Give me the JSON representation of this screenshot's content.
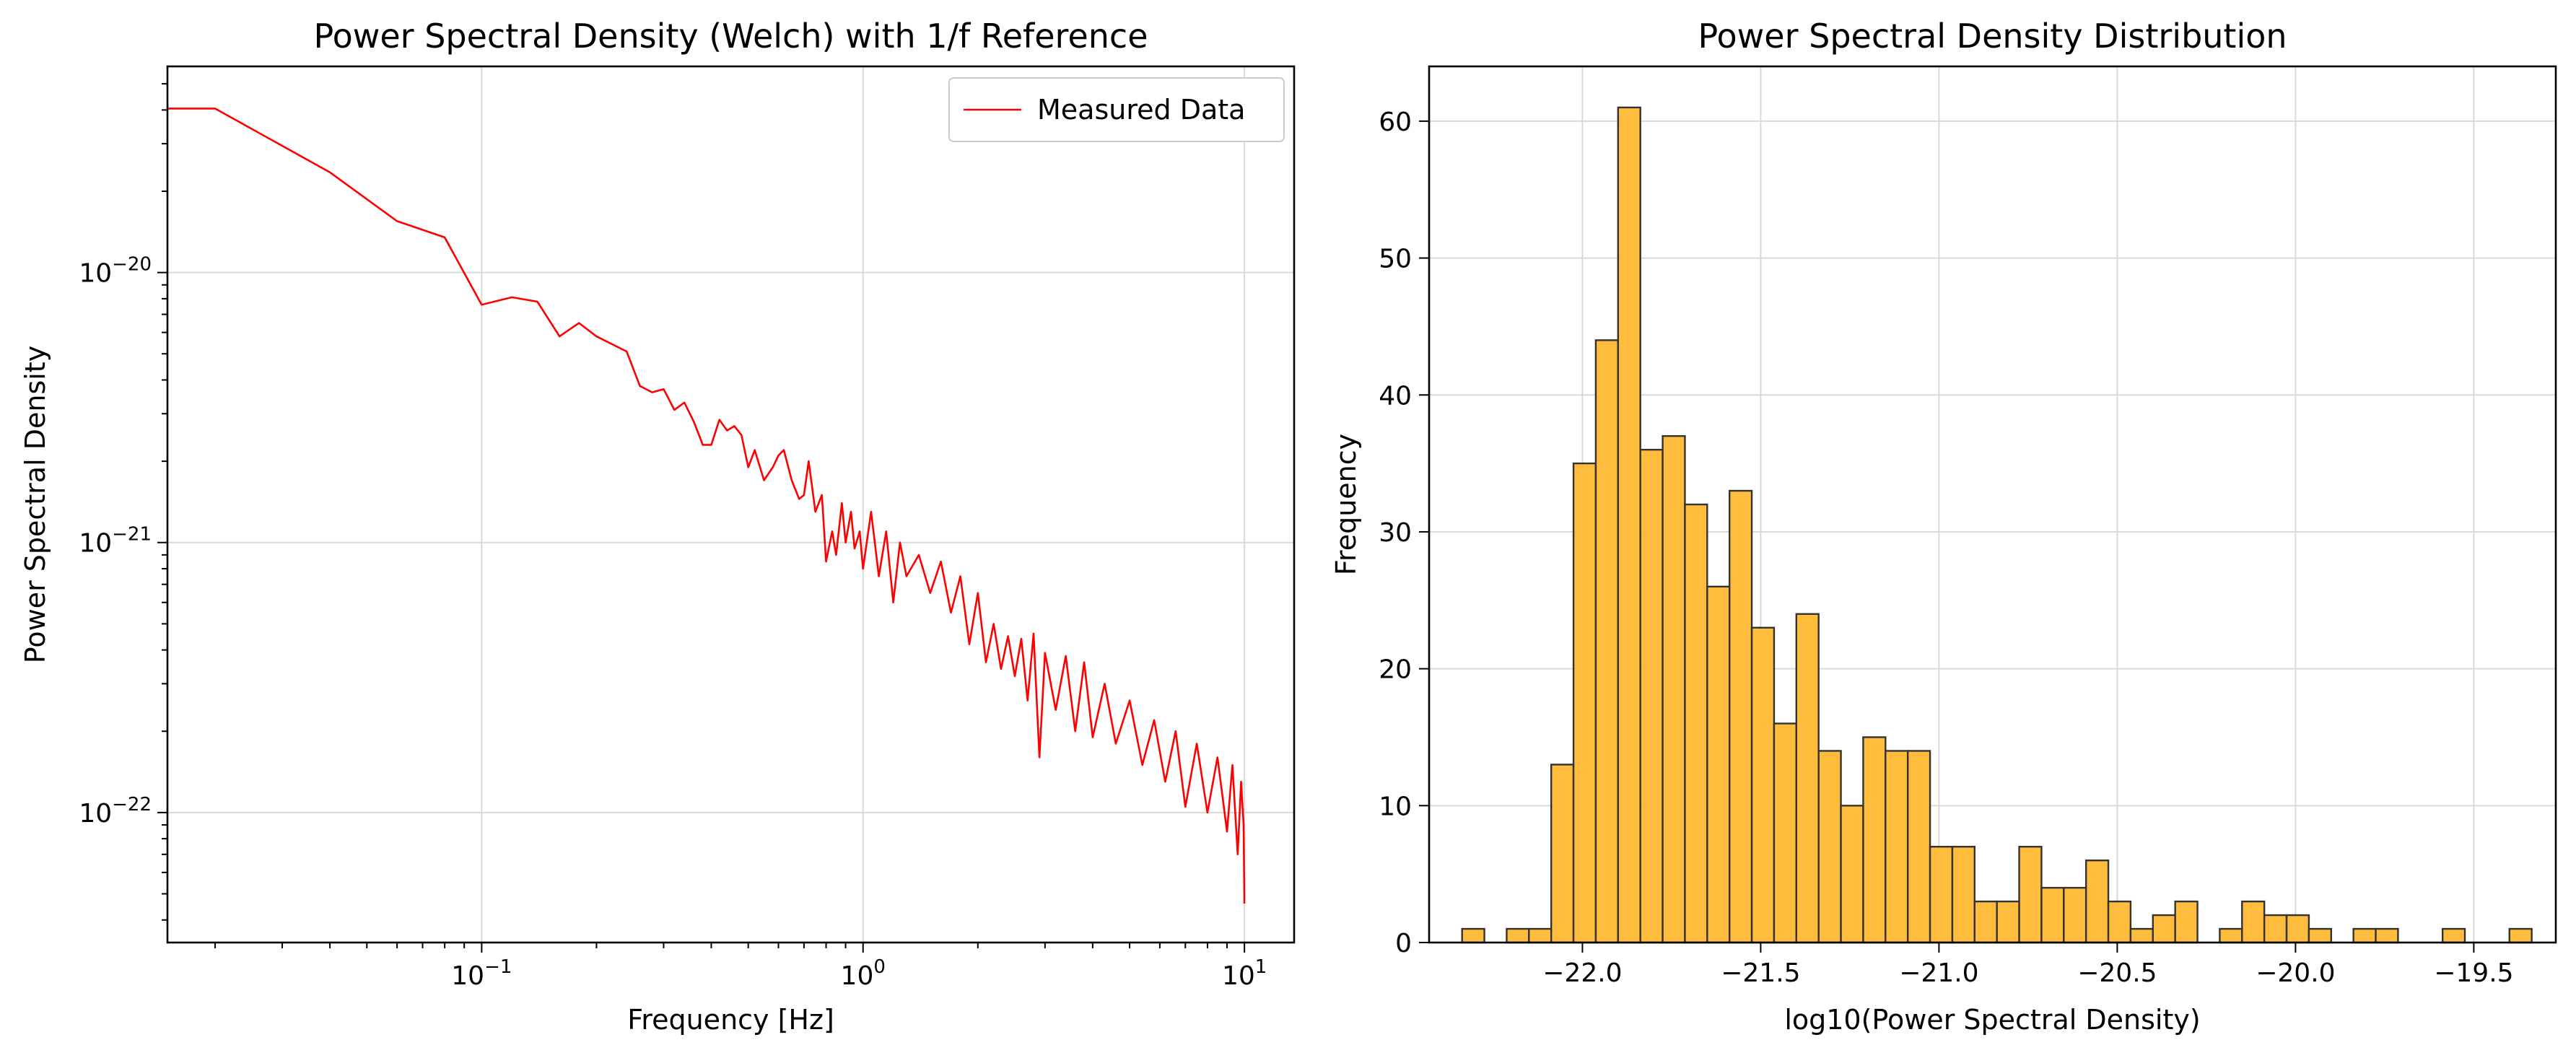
{
  "chart_data": [
    {
      "type": "line",
      "title": "Power Spectral Density (Welch) with 1/f Reference",
      "xlabel": "Frequency [Hz]",
      "ylabel": "Power Spectral Density",
      "xscale": "log",
      "yscale": "log",
      "xlim": [
        0.015,
        13.5
      ],
      "ylim": [
        3.3e-23,
        5.8e-20
      ],
      "xticks": [
        {
          "value": 0.1,
          "base": "10",
          "exp": "−1"
        },
        {
          "value": 1,
          "base": "10",
          "exp": "0"
        },
        {
          "value": 10,
          "base": "10",
          "exp": "1"
        }
      ],
      "yticks": [
        {
          "value": 1e-22,
          "base": "10",
          "exp": "−22"
        },
        {
          "value": 1e-21,
          "base": "10",
          "exp": "−21"
        },
        {
          "value": 1e-20,
          "base": "10",
          "exp": "−20"
        }
      ],
      "grid": true,
      "legend": {
        "position": "top-right",
        "entries": [
          "Measured Data"
        ]
      },
      "series": [
        {
          "name": "Measured Data",
          "color": "#ff0000",
          "x": [
            0.015,
            0.02,
            0.04,
            0.06,
            0.08,
            0.1,
            0.12,
            0.14,
            0.16,
            0.18,
            0.2,
            0.24,
            0.26,
            0.28,
            0.3,
            0.32,
            0.34,
            0.36,
            0.38,
            0.4,
            0.42,
            0.44,
            0.46,
            0.48,
            0.5,
            0.52,
            0.55,
            0.58,
            0.6,
            0.62,
            0.65,
            0.68,
            0.7,
            0.72,
            0.75,
            0.78,
            0.8,
            0.83,
            0.85,
            0.88,
            0.9,
            0.93,
            0.95,
            0.98,
            1.0,
            1.05,
            1.1,
            1.15,
            1.2,
            1.25,
            1.3,
            1.4,
            1.5,
            1.6,
            1.7,
            1.8,
            1.9,
            2.0,
            2.1,
            2.2,
            2.3,
            2.4,
            2.5,
            2.6,
            2.7,
            2.8,
            2.9,
            3.0,
            3.2,
            3.4,
            3.6,
            3.8,
            4.0,
            4.3,
            4.6,
            5.0,
            5.4,
            5.8,
            6.2,
            6.6,
            7.0,
            7.5,
            8.0,
            8.5,
            9.0,
            9.3,
            9.6,
            9.8,
            9.95,
            10.0
          ],
          "y": [
            4.05e-20,
            4.05e-20,
            2.35e-20,
            1.55e-20,
            1.35e-20,
            7.6e-21,
            8.1e-21,
            7.8e-21,
            5.8e-21,
            6.5e-21,
            5.8e-21,
            5.1e-21,
            3.8e-21,
            3.6e-21,
            3.7e-21,
            3.1e-21,
            3.3e-21,
            2.8e-21,
            2.3e-21,
            2.3e-21,
            2.85e-21,
            2.6e-21,
            2.7e-21,
            2.5e-21,
            1.9e-21,
            2.2e-21,
            1.7e-21,
            1.9e-21,
            2.1e-21,
            2.2e-21,
            1.7e-21,
            1.45e-21,
            1.5e-21,
            2e-21,
            1.3e-21,
            1.5e-21,
            8.5e-22,
            1.1e-21,
            9e-22,
            1.4e-21,
            1e-21,
            1.3e-21,
            9.5e-22,
            1.1e-21,
            8e-22,
            1.3e-21,
            7.5e-22,
            1.1e-21,
            6e-22,
            1e-21,
            7.5e-22,
            9e-22,
            6.5e-22,
            8.5e-22,
            5.5e-22,
            7.5e-22,
            4.2e-22,
            6.5e-22,
            3.6e-22,
            5e-22,
            3.4e-22,
            4.5e-22,
            3.2e-22,
            4.4e-22,
            2.6e-22,
            4.6e-22,
            1.6e-22,
            3.9e-22,
            2.4e-22,
            3.8e-22,
            2e-22,
            3.6e-22,
            1.9e-22,
            3e-22,
            1.8e-22,
            2.6e-22,
            1.5e-22,
            2.2e-22,
            1.3e-22,
            2e-22,
            1.05e-22,
            1.8e-22,
            1e-22,
            1.6e-22,
            8.5e-23,
            1.5e-22,
            7e-23,
            1.3e-22,
            9e-23,
            4.6e-23
          ]
        }
      ]
    },
    {
      "type": "bar",
      "subtype": "histogram",
      "title": "Power Spectral Density Distribution",
      "xlabel": "log10(Power Spectral Density)",
      "ylabel": "Frequency",
      "xlim": [
        -22.43,
        -19.27
      ],
      "ylim": [
        0,
        64
      ],
      "xticks": [
        {
          "value": -22.0,
          "label": "−22.0"
        },
        {
          "value": -21.5,
          "label": "−21.5"
        },
        {
          "value": -21.0,
          "label": "−21.0"
        },
        {
          "value": -20.5,
          "label": "−20.5"
        },
        {
          "value": -20.0,
          "label": "−20.0"
        },
        {
          "value": -19.5,
          "label": "−19.5"
        }
      ],
      "yticks": [
        0,
        10,
        20,
        30,
        40,
        50,
        60
      ],
      "grid": true,
      "bar_color": "#ffb833",
      "edge_color": "#333333",
      "bin_start": -22.3375,
      "bin_width": 0.0625,
      "counts": [
        1,
        0,
        1,
        1,
        13,
        35,
        44,
        61,
        36,
        37,
        32,
        26,
        33,
        23,
        16,
        24,
        14,
        10,
        15,
        14,
        14,
        7,
        7,
        3,
        3,
        7,
        4,
        4,
        6,
        3,
        1,
        2,
        3,
        0,
        1,
        3,
        2,
        2,
        1,
        0,
        1,
        1,
        0,
        0,
        1,
        0,
        0,
        1
      ]
    }
  ]
}
